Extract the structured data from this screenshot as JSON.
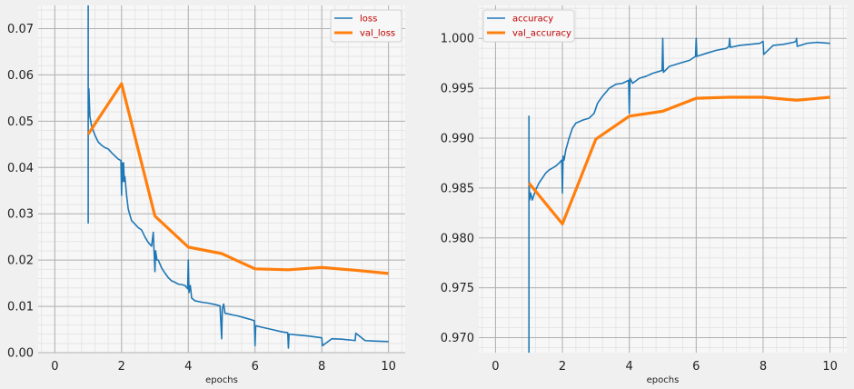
{
  "chart_data": [
    {
      "type": "line",
      "xlabel": "epochs",
      "ylabel": "",
      "xlim": [
        -0.5,
        10.5
      ],
      "ylim": [
        0,
        0.075
      ],
      "x_ticks": [
        "0",
        "2",
        "4",
        "6",
        "8",
        "10"
      ],
      "y_ticks": [
        "0.00",
        "0.01",
        "0.02",
        "0.03",
        "0.04",
        "0.05",
        "0.06",
        "0.07"
      ],
      "grid": true,
      "legend": "top-right",
      "series": [
        {
          "name": "loss",
          "color": "#1f77b4",
          "x": [
            1.0,
            1.0,
            1.0,
            1.02,
            1.05,
            1.1,
            1.2,
            1.3,
            1.4,
            1.5,
            1.6,
            1.7,
            1.8,
            1.9,
            1.98,
            2.0,
            2.02,
            2.04,
            2.06,
            2.08,
            2.1,
            2.15,
            2.2,
            2.3,
            2.4,
            2.5,
            2.6,
            2.7,
            2.8,
            2.9,
            2.95,
            3.0,
            3.02,
            3.06,
            3.1,
            3.2,
            3.3,
            3.4,
            3.5,
            3.6,
            3.7,
            3.8,
            3.9,
            3.98,
            4.0,
            4.02,
            4.06,
            4.1,
            4.2,
            4.4,
            4.6,
            4.8,
            4.95,
            5.0,
            5.02,
            5.06,
            5.1,
            5.3,
            5.5,
            5.7,
            5.9,
            5.98,
            6.0,
            6.02,
            6.2,
            6.5,
            6.8,
            6.98,
            7.0,
            7.02,
            7.3,
            7.6,
            7.9,
            8.0,
            8.02,
            8.3,
            8.6,
            8.9,
            9.0,
            9.02,
            9.3,
            9.6,
            10.0
          ],
          "y": [
            0.075,
            0.028,
            0.05,
            0.057,
            0.051,
            0.049,
            0.047,
            0.0455,
            0.0448,
            0.0443,
            0.044,
            0.0432,
            0.0425,
            0.0418,
            0.0415,
            0.034,
            0.041,
            0.037,
            0.041,
            0.037,
            0.038,
            0.034,
            0.031,
            0.0285,
            0.0278,
            0.027,
            0.0265,
            0.025,
            0.0238,
            0.023,
            0.026,
            0.0175,
            0.022,
            0.02,
            0.02,
            0.0183,
            0.0172,
            0.0162,
            0.0155,
            0.0152,
            0.0148,
            0.0147,
            0.0145,
            0.0138,
            0.02,
            0.013,
            0.0145,
            0.0118,
            0.0112,
            0.0109,
            0.0107,
            0.0104,
            0.0101,
            0.003,
            0.0095,
            0.0105,
            0.0085,
            0.0082,
            0.0079,
            0.0075,
            0.0071,
            0.0069,
            0.0015,
            0.0058,
            0.0055,
            0.005,
            0.0045,
            0.0043,
            0.001,
            0.004,
            0.0038,
            0.0036,
            0.0033,
            0.0032,
            0.0015,
            0.003,
            0.0029,
            0.0027,
            0.0026,
            0.0042,
            0.0026,
            0.0025,
            0.0024
          ]
        },
        {
          "name": "val_loss",
          "color": "#ff7f0e",
          "x": [
            1,
            2,
            3,
            4,
            5,
            6,
            7,
            8,
            9,
            10
          ],
          "y": [
            0.0472,
            0.0581,
            0.0295,
            0.0228,
            0.0214,
            0.0181,
            0.0179,
            0.0184,
            0.0178,
            0.0171
          ]
        }
      ]
    },
    {
      "type": "line",
      "xlabel": "epochs",
      "ylabel": "",
      "xlim": [
        -0.5,
        10.5
      ],
      "ylim": [
        0.9685,
        1.0033
      ],
      "x_ticks": [
        "0",
        "2",
        "4",
        "6",
        "8",
        "10"
      ],
      "y_ticks": [
        "0.970",
        "0.975",
        "0.980",
        "0.985",
        "0.990",
        "0.995",
        "1.000"
      ],
      "grid": true,
      "legend": "top-left",
      "series": [
        {
          "name": "accuracy",
          "color": "#1f77b4",
          "x": [
            1.0,
            1.0,
            1.0,
            1.02,
            1.05,
            1.1,
            1.2,
            1.3,
            1.4,
            1.5,
            1.6,
            1.7,
            1.8,
            1.9,
            1.98,
            2.0,
            2.02,
            2.05,
            2.1,
            2.2,
            2.3,
            2.4,
            2.6,
            2.8,
            2.95,
            3.0,
            3.05,
            3.2,
            3.4,
            3.6,
            3.8,
            3.98,
            4.0,
            4.02,
            4.1,
            4.3,
            4.5,
            4.7,
            4.9,
            4.98,
            5.0,
            5.02,
            5.2,
            5.5,
            5.8,
            5.98,
            6.0,
            6.02,
            6.3,
            6.6,
            6.9,
            6.98,
            7.0,
            7.02,
            7.3,
            7.6,
            7.9,
            8.0,
            8.02,
            8.3,
            8.6,
            8.9,
            8.98,
            9.0,
            9.02,
            9.3,
            9.6,
            10.0
          ],
          "y": [
            0.9685,
            0.9922,
            0.986,
            0.9838,
            0.9845,
            0.9838,
            0.9848,
            0.9855,
            0.986,
            0.9865,
            0.9868,
            0.987,
            0.9872,
            0.9875,
            0.9878,
            0.9845,
            0.9882,
            0.9878,
            0.9888,
            0.99,
            0.991,
            0.9915,
            0.9918,
            0.992,
            0.9925,
            0.993,
            0.9935,
            0.9942,
            0.995,
            0.9954,
            0.9955,
            0.9958,
            0.9925,
            0.996,
            0.9955,
            0.996,
            0.9962,
            0.9965,
            0.9967,
            0.9968,
            1.0,
            0.9966,
            0.9972,
            0.9975,
            0.9978,
            0.9982,
            1.0,
            0.9982,
            0.9985,
            0.9988,
            0.999,
            0.9992,
            1.0,
            0.9991,
            0.9993,
            0.9994,
            0.9995,
            0.9997,
            0.9984,
            0.9993,
            0.9994,
            0.9996,
            0.9997,
            1.0,
            0.9992,
            0.9995,
            0.9996,
            0.9995
          ]
        },
        {
          "name": "val_accuracy",
          "color": "#ff7f0e",
          "x": [
            1,
            2,
            3,
            4,
            5,
            6,
            7,
            8,
            9,
            10
          ],
          "y": [
            0.9855,
            0.9814,
            0.9899,
            0.9922,
            0.9927,
            0.994,
            0.9941,
            0.9941,
            0.9938,
            0.9941
          ]
        }
      ]
    }
  ]
}
